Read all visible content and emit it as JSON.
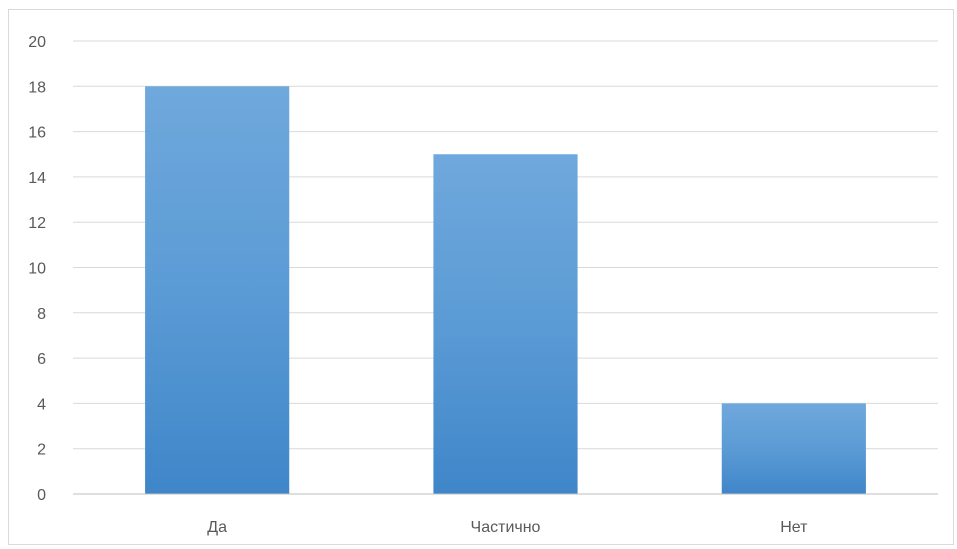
{
  "chart_data": {
    "type": "bar",
    "title": "",
    "xlabel": "",
    "ylabel": "",
    "categories": [
      "Да",
      "Частично",
      "Нет"
    ],
    "values": [
      18,
      15,
      4
    ],
    "ylim": [
      0,
      20
    ],
    "yticks": [
      0,
      2,
      4,
      6,
      8,
      10,
      12,
      14,
      16,
      18,
      20
    ],
    "grid": true,
    "legend": "none",
    "colors": {
      "bar_top": "#6fa8dc",
      "bar_mid": "#5b9bd5",
      "bar_bottom": "#3f86c9",
      "grid": "#d9d9d9",
      "axis": "#bfbfbf",
      "text": "#595959"
    }
  }
}
